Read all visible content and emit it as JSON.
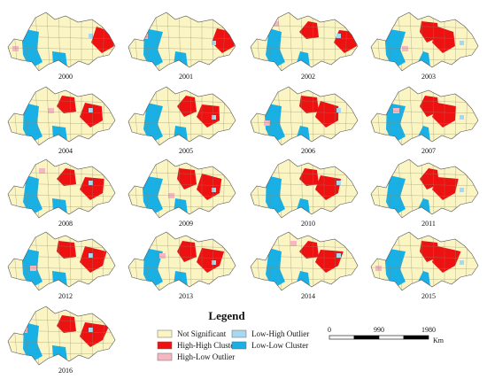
{
  "maps": [
    "2000",
    "2001",
    "2002",
    "2003",
    "2004",
    "2005",
    "2006",
    "2007",
    "2008",
    "2009",
    "2010",
    "2011",
    "2012",
    "2013",
    "2014",
    "2015",
    "2016"
  ],
  "legend": {
    "title": "Legend",
    "items": [
      "Not Significant",
      "High-High Cluster",
      "High-Low Outlier",
      "Low-High Outlier",
      "Low-Low Cluster"
    ]
  },
  "scale": {
    "ticks": [
      "0",
      "990",
      "1980"
    ],
    "unit": "Km"
  }
}
